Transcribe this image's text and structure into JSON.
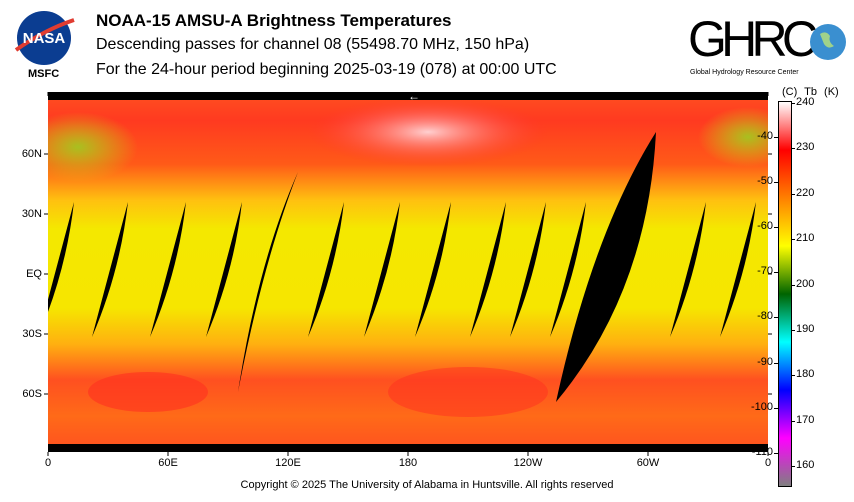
{
  "header": {
    "title": "NOAA-15 AMSU-A Brightness Temperatures",
    "subtitle": "Descending passes for channel 08 (55498.70 MHz, 150 hPa)",
    "period": "For the 24-hour period beginning 2025-03-19 (078) at 00:00 UTC"
  },
  "logos": {
    "left": "NASA",
    "left_caption": "MSFC",
    "right": "GHRC",
    "right_caption": "Global Hydrology Resource Center"
  },
  "map": {
    "lat_labels": [
      "60N",
      "30N",
      "EQ",
      "30S",
      "60S"
    ],
    "lon_labels": [
      "0",
      "60E",
      "120E",
      "180",
      "120W",
      "60W",
      "0"
    ],
    "direction_marker": "←"
  },
  "colorbar": {
    "header_c": "(C)",
    "header_tb": "Tb",
    "header_k": "(K)",
    "kelvin_ticks": [
      "240",
      "230",
      "220",
      "210",
      "200",
      "190",
      "180",
      "170",
      "160"
    ],
    "celsius_ticks": [
      "-40",
      "-50",
      "-60",
      "-70",
      "-80",
      "-90",
      "-100",
      "-110"
    ],
    "colors": [
      "#ffffff",
      "#ff0000",
      "#ff8000",
      "#ffff00",
      "#006400",
      "#00ffff",
      "#0000ff",
      "#ff00ff",
      "#808080"
    ]
  },
  "footer": {
    "copyright": "Copyright © 2025 The University of Alabama in Huntsville.  All rights reserved"
  }
}
